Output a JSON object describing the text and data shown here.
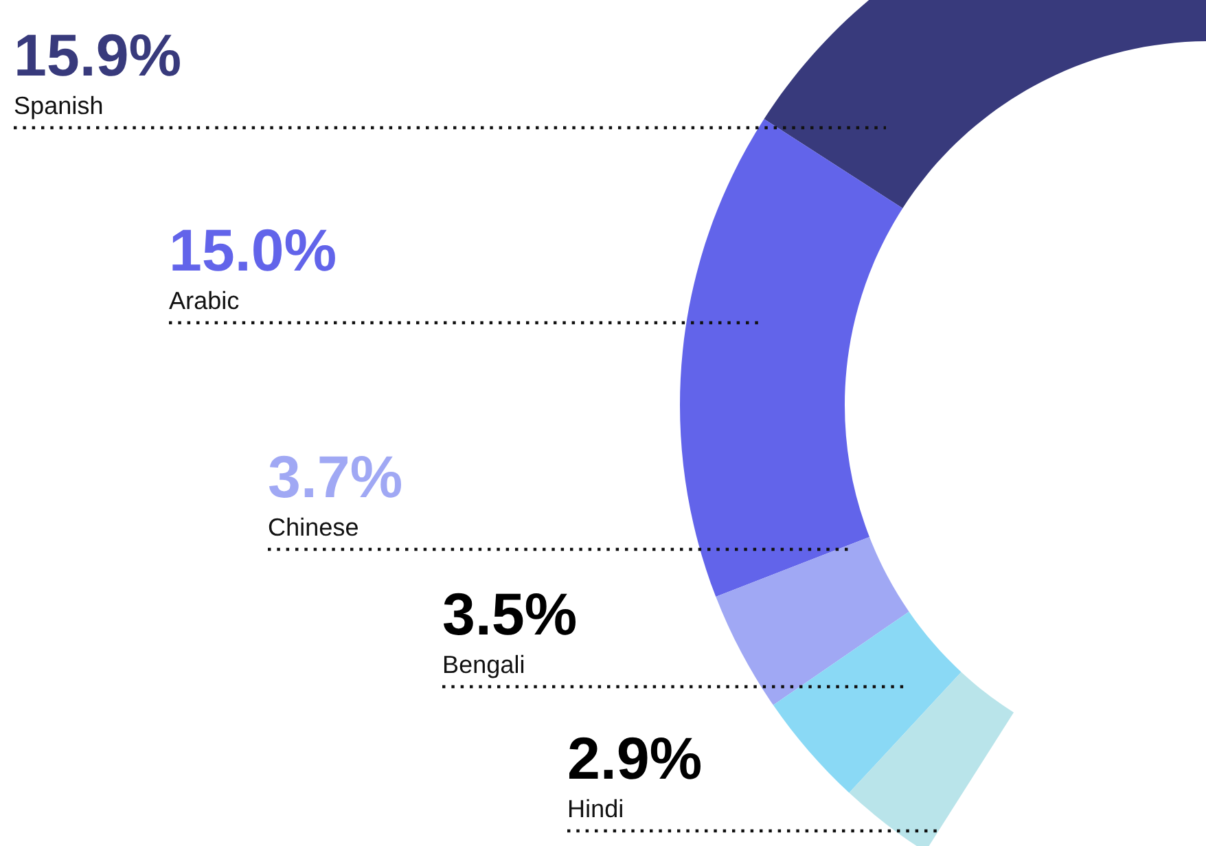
{
  "chart_data": {
    "type": "donut",
    "categories": [
      "Spanish",
      "Arabic",
      "Chinese",
      "Bengali",
      "Hindi"
    ],
    "values": [
      15.9,
      15.0,
      3.7,
      3.5,
      2.9
    ],
    "value_labels": [
      "15.9%",
      "15.0%",
      "3.7%",
      "3.5%",
      "2.9%"
    ],
    "colors": [
      "#383a7c",
      "#6264ea",
      "#a0a8f4",
      "#8ad9f5",
      "#b9e4ea"
    ]
  }
}
